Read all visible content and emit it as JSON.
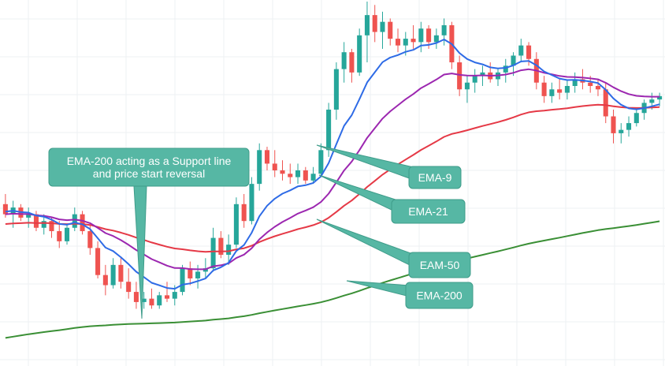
{
  "colors": {
    "background": "#ffffff",
    "grid": "#eef0f3",
    "candle_up": "#26a69a",
    "candle_down": "#ef5350",
    "callout_fill": "#56b7a4",
    "callout_stroke": "#3f9c8a"
  },
  "chart_data": {
    "type": "candlestick",
    "title": "",
    "xlabel": "",
    "ylabel": "",
    "grid": true,
    "ylim": [
      0,
      100
    ],
    "candles": [
      {
        "o": 40,
        "h": 43,
        "l": 36,
        "c": 37
      },
      {
        "o": 37,
        "h": 41,
        "l": 33,
        "c": 39
      },
      {
        "o": 39,
        "h": 40,
        "l": 35,
        "c": 36
      },
      {
        "o": 36,
        "h": 39,
        "l": 33,
        "c": 37
      },
      {
        "o": 37,
        "h": 38,
        "l": 32,
        "c": 33
      },
      {
        "o": 33,
        "h": 37,
        "l": 31,
        "c": 35
      },
      {
        "o": 35,
        "h": 36,
        "l": 30,
        "c": 32
      },
      {
        "o": 32,
        "h": 35,
        "l": 27,
        "c": 29
      },
      {
        "o": 29,
        "h": 34,
        "l": 28,
        "c": 33
      },
      {
        "o": 33,
        "h": 39,
        "l": 32,
        "c": 37
      },
      {
        "o": 37,
        "h": 38,
        "l": 31,
        "c": 32
      },
      {
        "o": 32,
        "h": 34,
        "l": 25,
        "c": 27
      },
      {
        "o": 27,
        "h": 29,
        "l": 18,
        "c": 19
      },
      {
        "o": 19,
        "h": 22,
        "l": 13,
        "c": 16
      },
      {
        "o": 16,
        "h": 24,
        "l": 15,
        "c": 22
      },
      {
        "o": 22,
        "h": 24,
        "l": 15,
        "c": 17
      },
      {
        "o": 17,
        "h": 21,
        "l": 12,
        "c": 14
      },
      {
        "o": 14,
        "h": 17,
        "l": 9,
        "c": 11
      },
      {
        "o": 11,
        "h": 14,
        "l": 9,
        "c": 12
      },
      {
        "o": 12,
        "h": 15,
        "l": 9,
        "c": 10
      },
      {
        "o": 10,
        "h": 14,
        "l": 9,
        "c": 13
      },
      {
        "o": 13,
        "h": 17,
        "l": 11,
        "c": 12
      },
      {
        "o": 12,
        "h": 16,
        "l": 10,
        "c": 14
      },
      {
        "o": 14,
        "h": 22,
        "l": 13,
        "c": 21
      },
      {
        "o": 21,
        "h": 23,
        "l": 16,
        "c": 18
      },
      {
        "o": 18,
        "h": 22,
        "l": 15,
        "c": 20
      },
      {
        "o": 20,
        "h": 24,
        "l": 18,
        "c": 21
      },
      {
        "o": 21,
        "h": 33,
        "l": 20,
        "c": 30
      },
      {
        "o": 30,
        "h": 32,
        "l": 24,
        "c": 25
      },
      {
        "o": 25,
        "h": 31,
        "l": 22,
        "c": 28
      },
      {
        "o": 28,
        "h": 42,
        "l": 27,
        "c": 40
      },
      {
        "o": 40,
        "h": 43,
        "l": 33,
        "c": 35
      },
      {
        "o": 35,
        "h": 48,
        "l": 34,
        "c": 46
      },
      {
        "o": 46,
        "h": 58,
        "l": 44,
        "c": 56
      },
      {
        "o": 56,
        "h": 57,
        "l": 50,
        "c": 52
      },
      {
        "o": 52,
        "h": 56,
        "l": 48,
        "c": 50
      },
      {
        "o": 50,
        "h": 53,
        "l": 47,
        "c": 49
      },
      {
        "o": 49,
        "h": 52,
        "l": 46,
        "c": 48
      },
      {
        "o": 48,
        "h": 52,
        "l": 46,
        "c": 50
      },
      {
        "o": 50,
        "h": 51,
        "l": 46,
        "c": 47
      },
      {
        "o": 47,
        "h": 51,
        "l": 46,
        "c": 49
      },
      {
        "o": 49,
        "h": 58,
        "l": 48,
        "c": 56
      },
      {
        "o": 56,
        "h": 70,
        "l": 54,
        "c": 68
      },
      {
        "o": 68,
        "h": 82,
        "l": 65,
        "c": 80
      },
      {
        "o": 80,
        "h": 88,
        "l": 76,
        "c": 85
      },
      {
        "o": 85,
        "h": 86,
        "l": 76,
        "c": 79
      },
      {
        "o": 79,
        "h": 92,
        "l": 78,
        "c": 90
      },
      {
        "o": 90,
        "h": 100,
        "l": 82,
        "c": 96
      },
      {
        "o": 96,
        "h": 99,
        "l": 88,
        "c": 91
      },
      {
        "o": 91,
        "h": 97,
        "l": 86,
        "c": 94
      },
      {
        "o": 94,
        "h": 95,
        "l": 87,
        "c": 89
      },
      {
        "o": 89,
        "h": 92,
        "l": 85,
        "c": 87
      },
      {
        "o": 87,
        "h": 91,
        "l": 84,
        "c": 89
      },
      {
        "o": 89,
        "h": 93,
        "l": 86,
        "c": 88
      },
      {
        "o": 88,
        "h": 94,
        "l": 85,
        "c": 92
      },
      {
        "o": 92,
        "h": 93,
        "l": 86,
        "c": 88
      },
      {
        "o": 88,
        "h": 92,
        "l": 86,
        "c": 90
      },
      {
        "o": 90,
        "h": 95,
        "l": 87,
        "c": 93
      },
      {
        "o": 93,
        "h": 94,
        "l": 80,
        "c": 82
      },
      {
        "o": 82,
        "h": 84,
        "l": 72,
        "c": 74
      },
      {
        "o": 74,
        "h": 78,
        "l": 70,
        "c": 76
      },
      {
        "o": 76,
        "h": 80,
        "l": 73,
        "c": 78
      },
      {
        "o": 78,
        "h": 81,
        "l": 75,
        "c": 79
      },
      {
        "o": 79,
        "h": 82,
        "l": 76,
        "c": 77
      },
      {
        "o": 77,
        "h": 80,
        "l": 75,
        "c": 79
      },
      {
        "o": 79,
        "h": 83,
        "l": 76,
        "c": 81
      },
      {
        "o": 81,
        "h": 85,
        "l": 78,
        "c": 84
      },
      {
        "o": 84,
        "h": 89,
        "l": 82,
        "c": 87
      },
      {
        "o": 87,
        "h": 88,
        "l": 81,
        "c": 83
      },
      {
        "o": 83,
        "h": 85,
        "l": 74,
        "c": 76
      },
      {
        "o": 76,
        "h": 78,
        "l": 70,
        "c": 72
      },
      {
        "o": 72,
        "h": 76,
        "l": 70,
        "c": 74
      },
      {
        "o": 74,
        "h": 77,
        "l": 71,
        "c": 73
      },
      {
        "o": 73,
        "h": 77,
        "l": 71,
        "c": 75
      },
      {
        "o": 75,
        "h": 79,
        "l": 73,
        "c": 77
      },
      {
        "o": 77,
        "h": 80,
        "l": 74,
        "c": 76
      },
      {
        "o": 76,
        "h": 78,
        "l": 73,
        "c": 75
      },
      {
        "o": 75,
        "h": 77,
        "l": 72,
        "c": 74
      },
      {
        "o": 74,
        "h": 76,
        "l": 64,
        "c": 66
      },
      {
        "o": 66,
        "h": 68,
        "l": 58,
        "c": 61
      },
      {
        "o": 61,
        "h": 64,
        "l": 58,
        "c": 62
      },
      {
        "o": 62,
        "h": 66,
        "l": 60,
        "c": 64
      },
      {
        "o": 64,
        "h": 68,
        "l": 63,
        "c": 67
      },
      {
        "o": 67,
        "h": 71,
        "l": 65,
        "c": 70
      },
      {
        "o": 70,
        "h": 73,
        "l": 68,
        "c": 71
      },
      {
        "o": 71,
        "h": 73,
        "l": 69,
        "c": 72
      }
    ],
    "series": [
      {
        "name": "EMA-9",
        "color": "#2e6be6"
      },
      {
        "name": "EMA-21",
        "color": "#9c27b0"
      },
      {
        "name": "EAM-50",
        "color": "#e53946"
      },
      {
        "name": "EMA-200",
        "color": "#3a8f35"
      }
    ]
  },
  "annotations": {
    "support": "EMA-200 acting as a Support line\n and price start reversal",
    "ema9": "EMA-9",
    "ema21": "EMA-21",
    "ema50": "EAM-50",
    "ema200": "EMA-200"
  }
}
